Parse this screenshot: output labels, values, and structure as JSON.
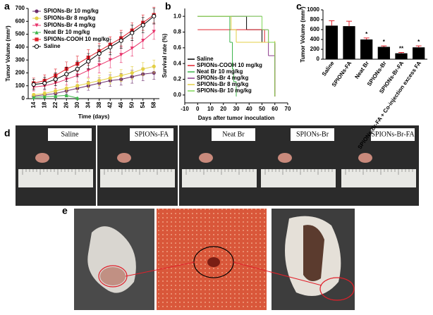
{
  "panel_labels": [
    "a",
    "b",
    "c",
    "d",
    "e"
  ],
  "chart_data": [
    {
      "type": "line",
      "ylabel": "Tumor Volume (mm³)",
      "xlabel": "Time (days)",
      "x": [
        14,
        18,
        22,
        26,
        30,
        34,
        38,
        42,
        46,
        50,
        54,
        58
      ],
      "xlim": [
        12,
        60
      ],
      "xticks": [
        14,
        18,
        22,
        26,
        30,
        34,
        38,
        42,
        46,
        50,
        54,
        58
      ],
      "ylim": [
        0,
        700
      ],
      "yticks": [
        0,
        100,
        200,
        300,
        400,
        500,
        600,
        700
      ],
      "legend": "upper left",
      "series": [
        {
          "name": "SPIONs-Br 10 mg/kg",
          "color": "#6b2c6b",
          "marker": "circle",
          "values": [
            20,
            30,
            40,
            60,
            80,
            100,
            120,
            140,
            150,
            170,
            190,
            200
          ],
          "errors": [
            10,
            15,
            20,
            25,
            30,
            35,
            40,
            45,
            45,
            50,
            50,
            50
          ]
        },
        {
          "name": "SPIONs-Br 8 mg/kg",
          "color": "#e3cf45",
          "marker": "circle",
          "values": [
            30,
            40,
            60,
            80,
            100,
            120,
            140,
            160,
            180,
            200,
            230,
            250
          ],
          "errors": [
            10,
            15,
            20,
            25,
            30,
            35,
            40,
            45,
            45,
            50,
            50,
            50
          ]
        },
        {
          "name": "SPIONs-Br 4 mg/kg",
          "color": "#e8336b",
          "marker": "triangle-down",
          "values": [
            90,
            100,
            120,
            150,
            180,
            220,
            260,
            300,
            340,
            390,
            450,
            520
          ],
          "errors": [
            30,
            35,
            40,
            45,
            50,
            55,
            60,
            60,
            60,
            60,
            60,
            60
          ]
        },
        {
          "name": "Neat Br 10 mg/kg",
          "color": "#3cb54a",
          "marker": "triangle-up",
          "values": [
            10,
            15,
            20,
            25,
            5,
            null,
            null,
            null,
            null,
            null,
            null,
            null
          ],
          "errors": [
            5,
            5,
            5,
            5,
            5,
            null,
            null,
            null,
            null,
            null,
            null,
            null
          ]
        },
        {
          "name": "SPIONs-COOH 10 mg/kg",
          "color": "#e0202a",
          "marker": "square",
          "values": [
            120,
            140,
            180,
            230,
            270,
            320,
            370,
            420,
            470,
            530,
            590,
            650
          ],
          "errors": [
            40,
            45,
            50,
            55,
            60,
            60,
            60,
            60,
            60,
            60,
            60,
            60
          ]
        },
        {
          "name": "Saline",
          "color": "#000000",
          "marker": "open-circle",
          "values": [
            110,
            120,
            150,
            190,
            230,
            290,
            350,
            400,
            450,
            510,
            570,
            640
          ],
          "errors": [
            40,
            45,
            50,
            55,
            60,
            60,
            60,
            60,
            60,
            60,
            60,
            60
          ]
        }
      ]
    },
    {
      "type": "step",
      "ylabel": "Survival rate (%)",
      "xlabel": "Days after tumor inoculation",
      "xlim": [
        -10,
        70
      ],
      "xticks": [
        -10,
        0,
        10,
        20,
        30,
        40,
        50,
        60,
        70
      ],
      "ylim": [
        -0.1,
        1.1
      ],
      "yticks": [
        {
          "value": 0,
          "label": "0.0"
        },
        0.2,
        0.4,
        0.6,
        0.8,
        {
          "value": 1,
          "label": "1.0"
        }
      ],
      "legend": "lower left",
      "series": [
        {
          "name": "Saline",
          "color": "#000000",
          "x": [
            0,
            38,
            50,
            60
          ],
          "values": [
            1.0,
            0.83,
            0.67,
            0
          ]
        },
        {
          "name": "SPIONs-COOH 10 mg/kg",
          "color": "#e0202a",
          "x": [
            0,
            52,
            60
          ],
          "values": [
            0.83,
            0.67,
            0
          ]
        },
        {
          "name": "Neat Br 10 mg/kg",
          "color": "#3cb54a",
          "x": [
            0,
            25,
            27,
            28,
            30
          ],
          "values": [
            1.0,
            0.67,
            0.33,
            0.17,
            0
          ]
        },
        {
          "name": "SPIONs-Br 4 mg/kg",
          "color": "#8b3a8b",
          "x": [
            0,
            50,
            55,
            60
          ],
          "values": [
            1.0,
            0.83,
            0.5,
            0.33
          ]
        },
        {
          "name": "SPIONs-Br 8 mg/kg",
          "color": "#e3cf45",
          "x": [
            0,
            26,
            30,
            60
          ],
          "values": [
            1.0,
            0.83,
            0.67,
            0.67
          ]
        },
        {
          "name": "SPIONs-Br 10 mg/kg",
          "color": "#7ed957",
          "x": [
            0,
            50,
            55,
            60
          ],
          "values": [
            1.0,
            0.83,
            0.67,
            0
          ]
        }
      ]
    },
    {
      "type": "bar",
      "ylabel": "Tumor Volume (mm³)",
      "categories": [
        "Saline",
        "SPIONs-FA",
        "Neat Br",
        "SPIONs-Br",
        "SPIONs-Br-FA",
        "SPIONs-Br-FA + Co-injection excess FA"
      ],
      "values": [
        680,
        670,
        400,
        250,
        120,
        240
      ],
      "errors": [
        100,
        100,
        30,
        20,
        15,
        30
      ],
      "annotations": [
        null,
        null,
        "*",
        "*",
        "**",
        "*"
      ],
      "color": "#000000",
      "error_color": "#e0202a",
      "ylim": [
        0,
        1000
      ],
      "yticks": [
        0,
        200,
        400,
        600,
        800,
        1000
      ]
    }
  ],
  "photos_d": [
    "Saline",
    "SPIONs-FA",
    "Neat Br",
    "SPIONs-Br",
    "SPIONs-Br-FA"
  ]
}
